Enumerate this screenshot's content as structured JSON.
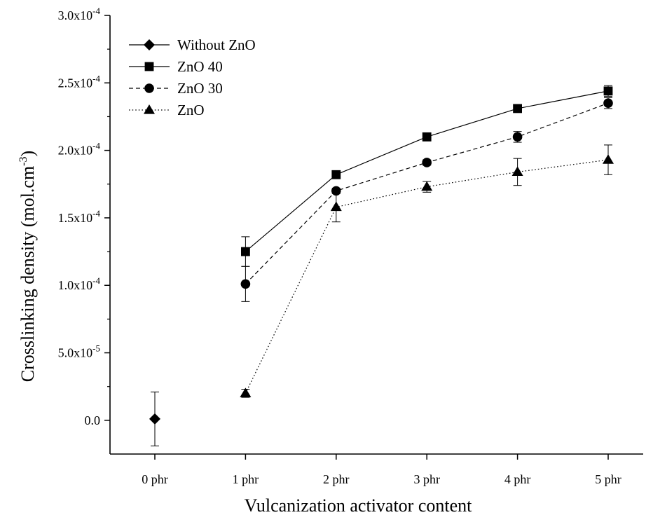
{
  "chart_data": {
    "type": "line",
    "xlabel": "Vulcanization activator content",
    "ylabel": {
      "main": "Crosslinking density (mol.cm",
      "exponent": "-3",
      "close": ")"
    },
    "categories": [
      "0 phr",
      "1 phr",
      "2 phr",
      "3 phr",
      "4 phr",
      "5 phr"
    ],
    "ylim": [
      -2.5e-05,
      0.0003
    ],
    "y_ticks": [
      {
        "value": 0,
        "base": "0.0",
        "exp": ""
      },
      {
        "value": 5e-05,
        "base": "5.0x10",
        "exp": "-5"
      },
      {
        "value": 0.0001,
        "base": "1.0x10",
        "exp": "-4"
      },
      {
        "value": 0.00015,
        "base": "1.5x10",
        "exp": "-4"
      },
      {
        "value": 0.0002,
        "base": "2.0x10",
        "exp": "-4"
      },
      {
        "value": 0.00025,
        "base": "2.5x10",
        "exp": "-4"
      },
      {
        "value": 0.0003,
        "base": "3.0x10",
        "exp": "-4"
      }
    ],
    "legend_position": "top-left",
    "grid": false,
    "series": [
      {
        "name": "Without ZnO",
        "marker": "diamond",
        "line": "solid",
        "points": [
          {
            "x": "0 phr",
            "y": 1e-06,
            "err": 2e-05
          }
        ]
      },
      {
        "name": "ZnO 40",
        "marker": "square",
        "line": "solid",
        "points": [
          {
            "x": "1 phr",
            "y": 0.000125,
            "err": 1.1e-05
          },
          {
            "x": "2 phr",
            "y": 0.000182,
            "err": 2e-06
          },
          {
            "x": "3 phr",
            "y": 0.00021,
            "err": 3e-06
          },
          {
            "x": "4 phr",
            "y": 0.000231,
            "err": 2e-06
          },
          {
            "x": "5 phr",
            "y": 0.000244,
            "err": 4e-06
          }
        ]
      },
      {
        "name": "ZnO 30",
        "marker": "circle",
        "line": "dashed",
        "points": [
          {
            "x": "1 phr",
            "y": 0.000101,
            "err": 1.3e-05
          },
          {
            "x": "2 phr",
            "y": 0.00017,
            "err": 2e-06
          },
          {
            "x": "3 phr",
            "y": 0.000191,
            "err": 2e-06
          },
          {
            "x": "4 phr",
            "y": 0.00021,
            "err": 4e-06
          },
          {
            "x": "5 phr",
            "y": 0.000235,
            "err": 4e-06
          }
        ]
      },
      {
        "name": "ZnO",
        "marker": "triangle",
        "line": "dotted",
        "points": [
          {
            "x": "1 phr",
            "y": 2e-05,
            "err": 3e-06
          },
          {
            "x": "2 phr",
            "y": 0.000158,
            "err": 1.1e-05
          },
          {
            "x": "3 phr",
            "y": 0.000173,
            "err": 4e-06
          },
          {
            "x": "4 phr",
            "y": 0.000184,
            "err": 1e-05
          },
          {
            "x": "5 phr",
            "y": 0.000193,
            "err": 1.1e-05
          }
        ]
      }
    ]
  }
}
